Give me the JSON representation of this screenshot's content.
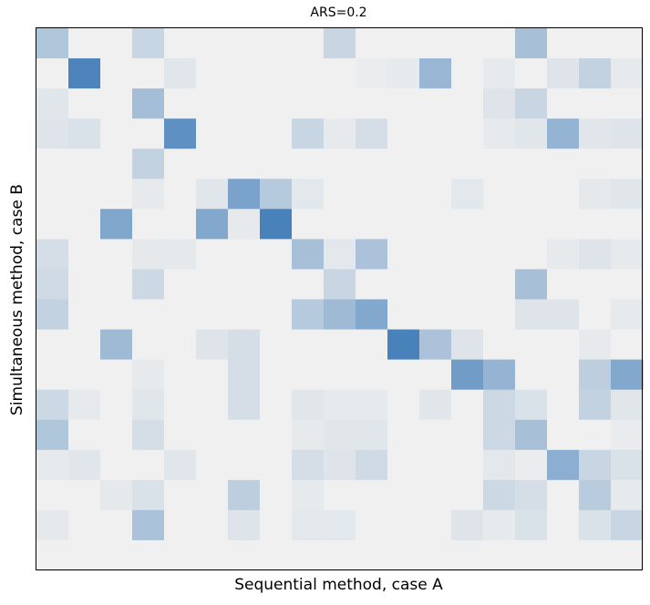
{
  "chart_data": {
    "type": "heatmap",
    "title": "ARS=0.2",
    "xlabel": "Sequential method, case A",
    "ylabel": "Simultaneous method, case B",
    "rows": 18,
    "cols": 19,
    "value_range": [
      0,
      1
    ],
    "colors": {
      "low": "#f0f0f0",
      "high": "#3a78b5",
      "frame": "#000000"
    },
    "grid": false,
    "ticks": "none",
    "cells": [
      [
        0.35,
        0,
        0,
        0.22,
        0,
        0,
        0,
        0,
        0,
        0.22,
        0,
        0,
        0,
        0,
        0,
        0.4,
        0,
        0,
        0
      ],
      [
        0,
        0.9,
        0,
        0,
        0.08,
        0,
        0,
        0,
        0,
        0,
        0.03,
        0.05,
        0.48,
        0,
        0.05,
        0,
        0.1,
        0.25,
        0.05
      ],
      [
        0.08,
        0,
        0,
        0.42,
        0,
        0,
        0,
        0,
        0,
        0,
        0,
        0,
        0,
        0,
        0.1,
        0.22,
        0,
        0,
        0
      ],
      [
        0.1,
        0.12,
        0,
        0,
        0.8,
        0,
        0,
        0,
        0.22,
        0.05,
        0.15,
        0,
        0,
        0,
        0.05,
        0.08,
        0.5,
        0.08,
        0.1
      ],
      [
        0,
        0,
        0,
        0.25,
        0,
        0,
        0,
        0,
        0,
        0,
        0,
        0,
        0,
        0,
        0,
        0,
        0,
        0,
        0
      ],
      [
        0,
        0,
        0,
        0.05,
        0,
        0.08,
        0.65,
        0.32,
        0.07,
        0,
        0,
        0,
        0,
        0.07,
        0,
        0,
        0,
        0.06,
        0.08
      ],
      [
        0,
        0,
        0.62,
        0,
        0,
        0.6,
        0.05,
        0.92,
        0,
        0,
        0,
        0,
        0,
        0,
        0,
        0,
        0,
        0,
        0
      ],
      [
        0.15,
        0,
        0,
        0.06,
        0.06,
        0,
        0,
        0,
        0.4,
        0.07,
        0.38,
        0,
        0,
        0,
        0,
        0,
        0.05,
        0.1,
        0.05
      ],
      [
        0.18,
        0,
        0,
        0.2,
        0,
        0,
        0,
        0,
        0,
        0.22,
        0,
        0,
        0,
        0,
        0,
        0.4,
        0,
        0,
        0
      ],
      [
        0.25,
        0,
        0,
        0,
        0,
        0,
        0,
        0,
        0.32,
        0.45,
        0.6,
        0,
        0,
        0,
        0,
        0.1,
        0.1,
        0,
        0.05
      ],
      [
        0,
        0,
        0.45,
        0,
        0,
        0.1,
        0.15,
        0,
        0,
        0,
        0,
        0.92,
        0.38,
        0.1,
        0,
        0,
        0,
        0.05,
        0
      ],
      [
        0,
        0,
        0,
        0.05,
        0,
        0,
        0.15,
        0,
        0,
        0,
        0,
        0,
        0,
        0.7,
        0.5,
        0,
        0,
        0.28,
        0.6
      ],
      [
        0.2,
        0.05,
        0,
        0.08,
        0,
        0,
        0.15,
        0,
        0.08,
        0.05,
        0.05,
        0,
        0.08,
        0,
        0.2,
        0.12,
        0,
        0.25,
        0.08
      ],
      [
        0.35,
        0,
        0,
        0.15,
        0,
        0,
        0,
        0,
        0.05,
        0.08,
        0.08,
        0,
        0,
        0,
        0.2,
        0.4,
        0,
        0,
        0.04
      ],
      [
        0.05,
        0.08,
        0,
        0,
        0.08,
        0,
        0,
        0,
        0.15,
        0.1,
        0.18,
        0,
        0,
        0,
        0.07,
        0.03,
        0.55,
        0.22,
        0.12
      ],
      [
        0,
        0,
        0.06,
        0.12,
        0,
        0,
        0.28,
        0,
        0.05,
        0,
        0,
        0,
        0,
        0,
        0.2,
        0.15,
        0,
        0.3,
        0.05
      ],
      [
        0.06,
        0,
        0,
        0.38,
        0,
        0,
        0.1,
        0,
        0.07,
        0.07,
        0,
        0,
        0,
        0.1,
        0.05,
        0.12,
        0,
        0.12,
        0.22
      ],
      [
        0,
        0,
        0,
        0,
        0,
        0,
        0,
        0,
        0,
        0,
        0,
        0,
        0,
        0,
        0,
        0,
        0,
        0,
        0
      ]
    ]
  }
}
